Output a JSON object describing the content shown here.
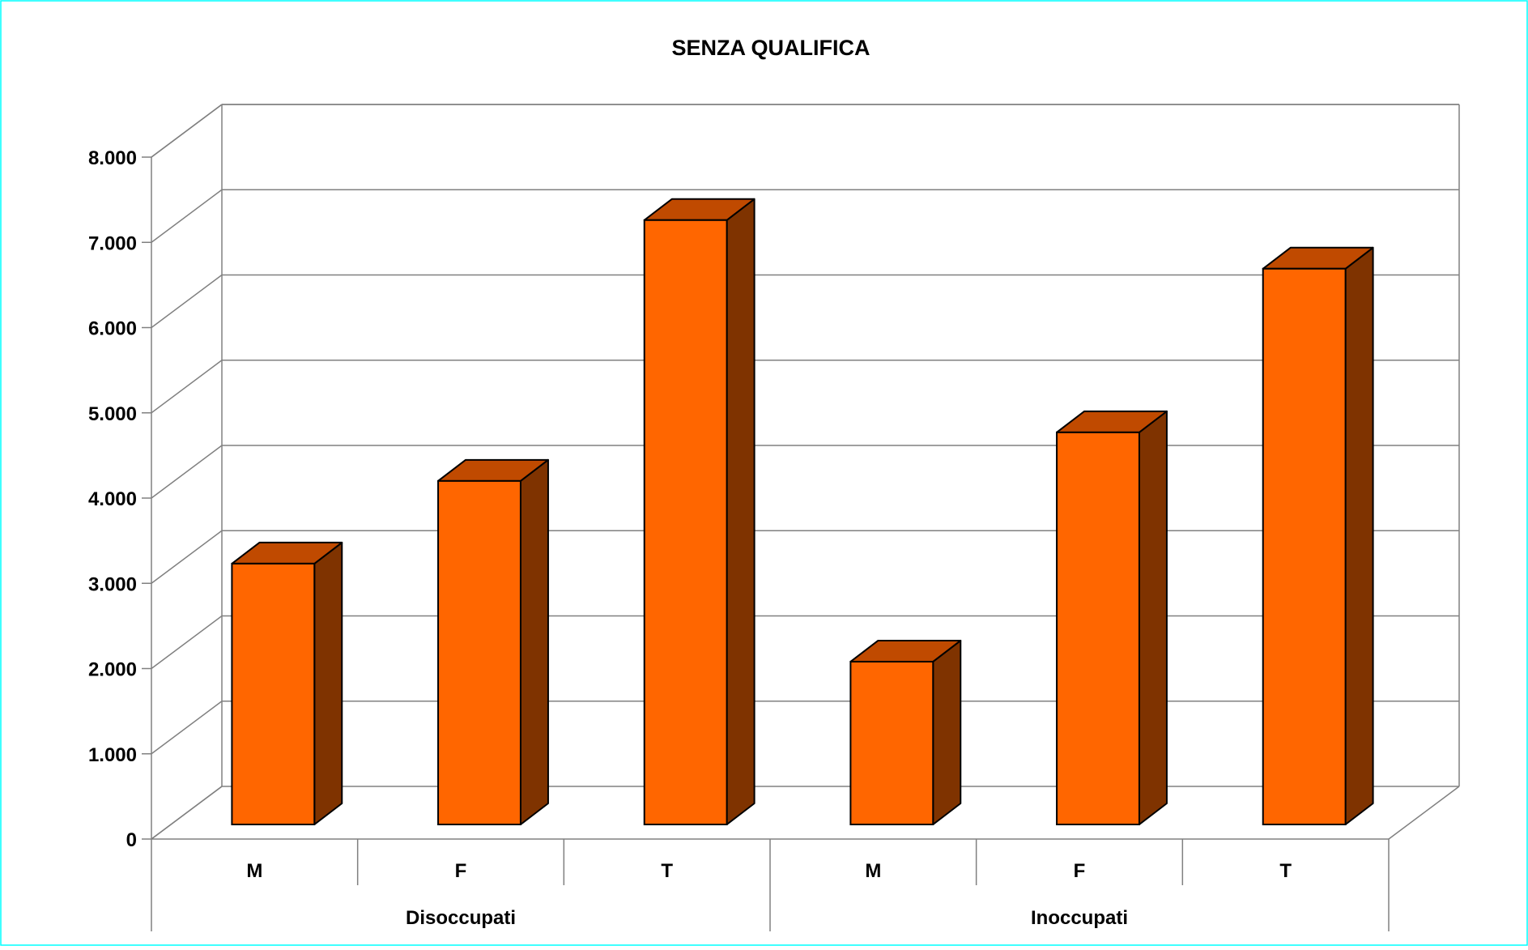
{
  "chart_data": {
    "type": "bar",
    "title": "SENZA QUALIFICA",
    "xlabel": "",
    "ylabel": "",
    "ylim": [
      0,
      8000
    ],
    "y_ticks": [
      0,
      1000,
      2000,
      3000,
      4000,
      5000,
      6000,
      7000,
      8000
    ],
    "y_tick_labels": [
      "0",
      "1.000",
      "2.000",
      "3.000",
      "4.000",
      "5.000",
      "6.000",
      "7.000",
      "8.000"
    ],
    "grid": true,
    "three_d": true,
    "groups": [
      {
        "label": "Disoccupati",
        "categories": [
          "M",
          "F",
          "T"
        ],
        "values": [
          3060,
          4030,
          7090
        ]
      },
      {
        "label": "Inoccupati",
        "categories": [
          "M",
          "F",
          "T"
        ],
        "values": [
          1910,
          4600,
          6520
        ]
      }
    ],
    "colors": {
      "bar_front": "#FF6600",
      "bar_top": "#C04A00",
      "bar_side": "#7F3300",
      "grid": "#808080",
      "frame_border": "#00FFFF"
    }
  }
}
